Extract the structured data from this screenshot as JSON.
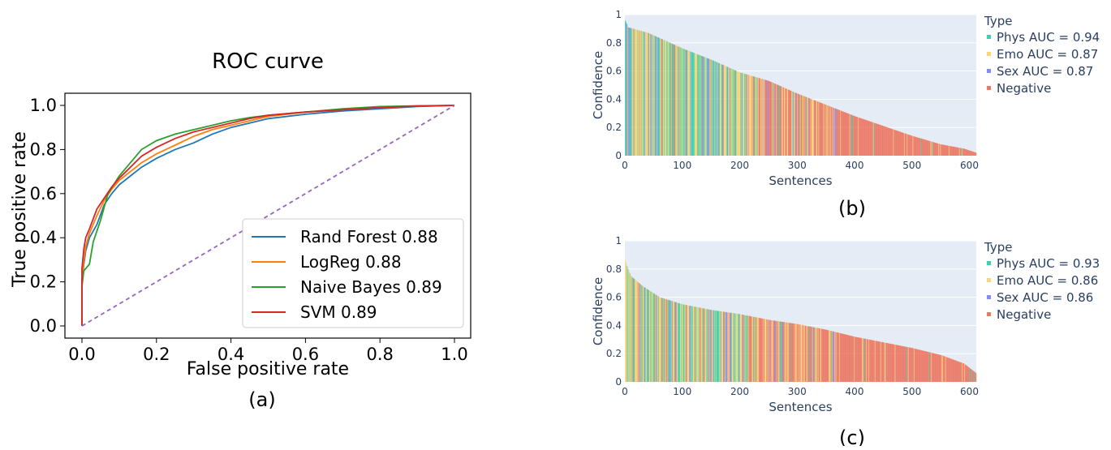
{
  "figure": {
    "captions": [
      "(a)",
      "(b)",
      "(c)"
    ]
  },
  "chart_data": [
    {
      "type": "line",
      "title": "ROC curve",
      "xlabel": "False positive rate",
      "ylabel": "True positive rate",
      "xlim": [
        0,
        1
      ],
      "ylim": [
        0,
        1
      ],
      "x_ticks": [
        "0.0",
        "0.2",
        "0.4",
        "0.6",
        "0.8",
        "1.0"
      ],
      "y_ticks": [
        "0.0",
        "0.2",
        "0.4",
        "0.6",
        "0.8",
        "1.0"
      ],
      "legend_position": "bottom-right",
      "grid": false,
      "series": [
        {
          "name": "Rand Forest 0.88",
          "color": "#1f77b4",
          "points": [
            [
              0,
              0
            ],
            [
              0,
              0.2
            ],
            [
              0.005,
              0.28
            ],
            [
              0.01,
              0.34
            ],
            [
              0.02,
              0.4
            ],
            [
              0.04,
              0.46
            ],
            [
              0.06,
              0.55
            ],
            [
              0.08,
              0.6
            ],
            [
              0.1,
              0.64
            ],
            [
              0.13,
              0.68
            ],
            [
              0.16,
              0.72
            ],
            [
              0.2,
              0.76
            ],
            [
              0.25,
              0.8
            ],
            [
              0.3,
              0.83
            ],
            [
              0.35,
              0.87
            ],
            [
              0.4,
              0.9
            ],
            [
              0.45,
              0.92
            ],
            [
              0.5,
              0.94
            ],
            [
              0.6,
              0.96
            ],
            [
              0.7,
              0.975
            ],
            [
              0.8,
              0.985
            ],
            [
              0.9,
              0.995
            ],
            [
              1,
              1
            ]
          ]
        },
        {
          "name": "LogReg 0.88",
          "color": "#ff7f0e",
          "points": [
            [
              0,
              0
            ],
            [
              0,
              0.21
            ],
            [
              0.005,
              0.3
            ],
            [
              0.01,
              0.36
            ],
            [
              0.02,
              0.42
            ],
            [
              0.04,
              0.5
            ],
            [
              0.06,
              0.57
            ],
            [
              0.08,
              0.62
            ],
            [
              0.1,
              0.66
            ],
            [
              0.13,
              0.7
            ],
            [
              0.16,
              0.74
            ],
            [
              0.2,
              0.78
            ],
            [
              0.25,
              0.82
            ],
            [
              0.3,
              0.86
            ],
            [
              0.35,
              0.89
            ],
            [
              0.4,
              0.91
            ],
            [
              0.45,
              0.93
            ],
            [
              0.5,
              0.95
            ],
            [
              0.6,
              0.97
            ],
            [
              0.7,
              0.98
            ],
            [
              0.8,
              0.99
            ],
            [
              0.9,
              0.997
            ],
            [
              1,
              1
            ]
          ]
        },
        {
          "name": "Naive Bayes 0.89",
          "color": "#2ca02c",
          "points": [
            [
              0,
              0
            ],
            [
              0,
              0.18
            ],
            [
              0.005,
              0.25
            ],
            [
              0.02,
              0.28
            ],
            [
              0.03,
              0.38
            ],
            [
              0.05,
              0.48
            ],
            [
              0.07,
              0.6
            ],
            [
              0.1,
              0.68
            ],
            [
              0.13,
              0.74
            ],
            [
              0.16,
              0.8
            ],
            [
              0.2,
              0.84
            ],
            [
              0.25,
              0.87
            ],
            [
              0.3,
              0.89
            ],
            [
              0.35,
              0.91
            ],
            [
              0.4,
              0.93
            ],
            [
              0.45,
              0.945
            ],
            [
              0.5,
              0.955
            ],
            [
              0.6,
              0.97
            ],
            [
              0.7,
              0.985
            ],
            [
              0.8,
              0.995
            ],
            [
              0.9,
              0.998
            ],
            [
              1,
              1
            ]
          ]
        },
        {
          "name": "SVM 0.89",
          "color": "#d62728",
          "points": [
            [
              0,
              0
            ],
            [
              0,
              0.26
            ],
            [
              0.005,
              0.35
            ],
            [
              0.01,
              0.4
            ],
            [
              0.02,
              0.44
            ],
            [
              0.04,
              0.53
            ],
            [
              0.06,
              0.58
            ],
            [
              0.08,
              0.63
            ],
            [
              0.1,
              0.67
            ],
            [
              0.13,
              0.72
            ],
            [
              0.16,
              0.77
            ],
            [
              0.2,
              0.81
            ],
            [
              0.25,
              0.85
            ],
            [
              0.3,
              0.88
            ],
            [
              0.35,
              0.9
            ],
            [
              0.4,
              0.92
            ],
            [
              0.45,
              0.94
            ],
            [
              0.5,
              0.955
            ],
            [
              0.6,
              0.97
            ],
            [
              0.7,
              0.98
            ],
            [
              0.8,
              0.99
            ],
            [
              0.9,
              0.997
            ],
            [
              1,
              1
            ]
          ]
        },
        {
          "name": "",
          "color": "#9467bd",
          "dashed": true,
          "points": [
            [
              0,
              0
            ],
            [
              1,
              1
            ]
          ]
        }
      ]
    },
    {
      "type": "bar",
      "xlabel": "Sentences",
      "ylabel": "Confidence",
      "xlim": [
        0,
        612
      ],
      "ylim": [
        0,
        1
      ],
      "x_ticks": [
        0,
        100,
        200,
        300,
        400,
        500,
        600
      ],
      "y_ticks": [
        0,
        0.2,
        0.4,
        0.6,
        0.8,
        1
      ],
      "y_tick_labels": [
        "0",
        "0.2",
        "0.4",
        "0.6",
        "0.8",
        "1"
      ],
      "legend_title": "Type",
      "legend_position": "right",
      "n_sentences": 612,
      "confidence_profile": [
        [
          0,
          0.96
        ],
        [
          5,
          0.91
        ],
        [
          40,
          0.87
        ],
        [
          100,
          0.76
        ],
        [
          150,
          0.68
        ],
        [
          200,
          0.59
        ],
        [
          250,
          0.53
        ],
        [
          300,
          0.44
        ],
        [
          350,
          0.36
        ],
        [
          400,
          0.28
        ],
        [
          450,
          0.21
        ],
        [
          500,
          0.14
        ],
        [
          550,
          0.08
        ],
        [
          590,
          0.05
        ],
        [
          612,
          0.02
        ]
      ],
      "series": [
        {
          "name": "Phys AUC = 0.94",
          "color": "#00cc96"
        },
        {
          "name": "Emo AUC = 0.87",
          "color": "#fecb52"
        },
        {
          "name": "Sex AUC = 0.87",
          "color": "#636efa"
        },
        {
          "name": "Negative",
          "color": "#ef553b"
        }
      ]
    },
    {
      "type": "bar",
      "xlabel": "Sentences",
      "ylabel": "Confidence",
      "xlim": [
        0,
        612
      ],
      "ylim": [
        0,
        1
      ],
      "x_ticks": [
        0,
        100,
        200,
        300,
        400,
        500,
        600
      ],
      "y_ticks": [
        0,
        0.2,
        0.4,
        0.6,
        0.8,
        1
      ],
      "y_tick_labels": [
        "0",
        "0.2",
        "0.4",
        "0.6",
        "0.8",
        "1"
      ],
      "legend_title": "Type",
      "legend_position": "right",
      "n_sentences": 612,
      "confidence_profile": [
        [
          0,
          0.86
        ],
        [
          3,
          0.82
        ],
        [
          10,
          0.75
        ],
        [
          30,
          0.68
        ],
        [
          60,
          0.6
        ],
        [
          100,
          0.55
        ],
        [
          150,
          0.51
        ],
        [
          200,
          0.48
        ],
        [
          250,
          0.44
        ],
        [
          300,
          0.41
        ],
        [
          350,
          0.37
        ],
        [
          400,
          0.32
        ],
        [
          450,
          0.28
        ],
        [
          500,
          0.24
        ],
        [
          550,
          0.19
        ],
        [
          590,
          0.13
        ],
        [
          612,
          0.06
        ]
      ],
      "series": [
        {
          "name": "Phys AUC = 0.93",
          "color": "#00cc96"
        },
        {
          "name": "Emo AUC = 0.86",
          "color": "#fecb52"
        },
        {
          "name": "Sex AUC = 0.86",
          "color": "#636efa"
        },
        {
          "name": "Negative",
          "color": "#ef553b"
        }
      ]
    }
  ]
}
